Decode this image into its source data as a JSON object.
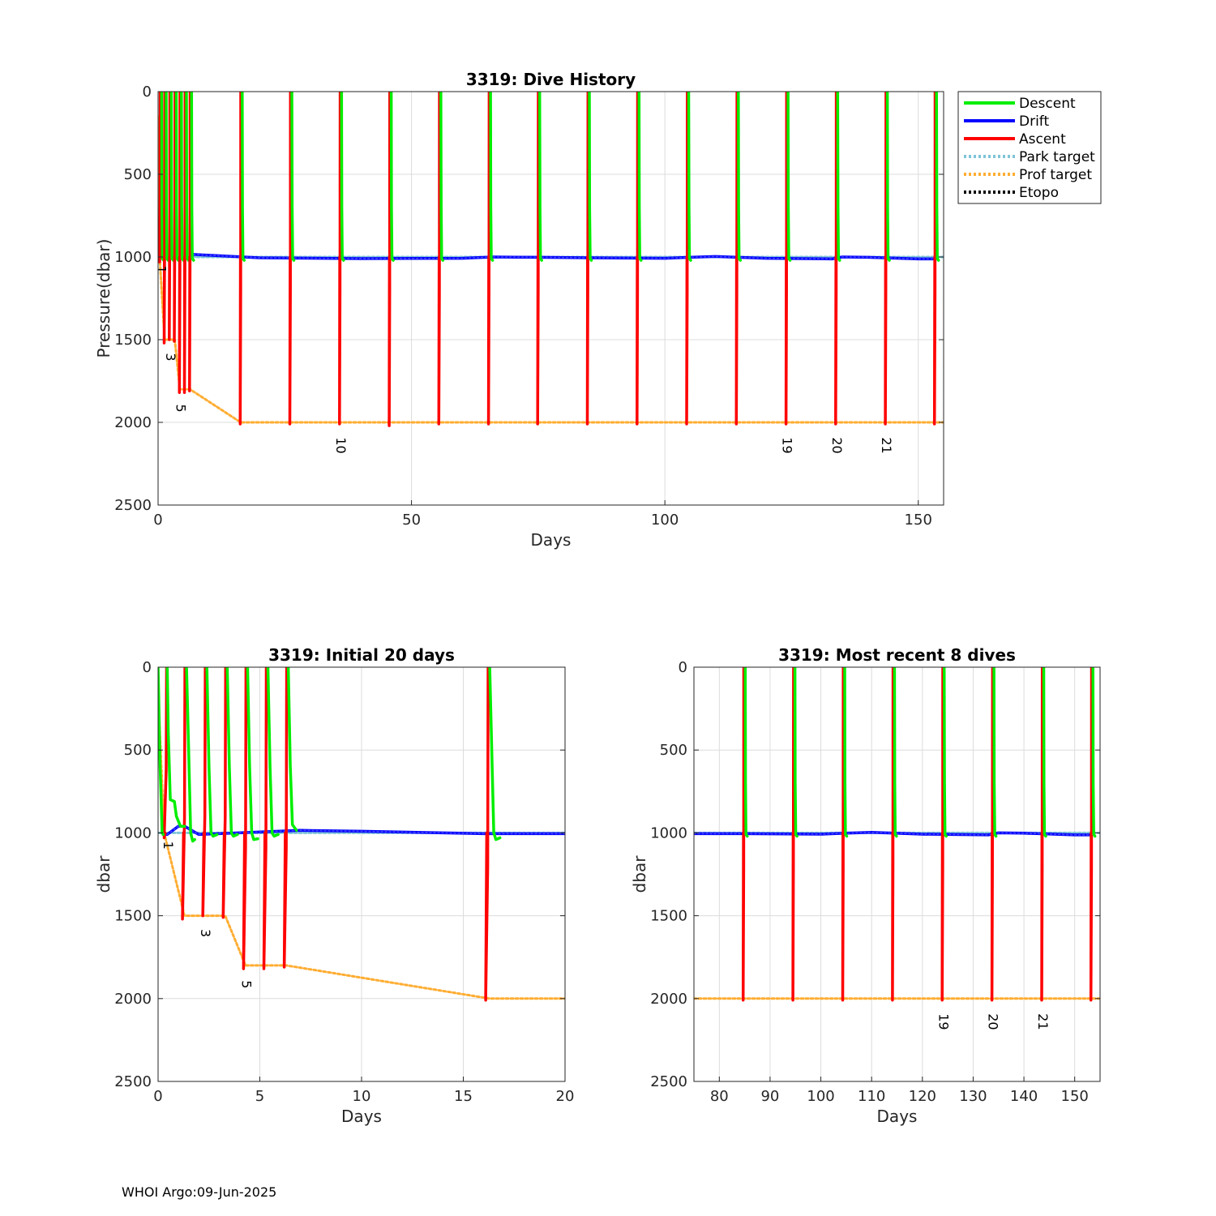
{
  "footer": "WHOI Argo:09-Jun-2025",
  "colors": {
    "descent": "#00ee00",
    "drift": "#0000ff",
    "ascent": "#ff0000",
    "park_target": "#7fc4d8",
    "prof_target": "#ffad33",
    "etopo": "#000000",
    "grid": "#dcdcdc"
  },
  "chart_data": [
    {
      "id": "top",
      "type": "line",
      "title": "3319: Dive History",
      "xlabel": "Days",
      "ylabel": "Pressure(dbar)",
      "xlim": [
        0,
        155
      ],
      "ylim": [
        0,
        2500
      ],
      "y_reversed": true,
      "xticks": [
        0,
        50,
        100,
        150
      ],
      "yticks": [
        0,
        500,
        1000,
        1500,
        2000,
        2500
      ],
      "grid": true,
      "legend": {
        "placement": "outside-top-right",
        "entries": [
          {
            "label": "Descent",
            "series": "descent",
            "style": "solid"
          },
          {
            "label": "Drift",
            "series": "drift",
            "style": "solid"
          },
          {
            "label": "Ascent",
            "series": "ascent",
            "style": "solid"
          },
          {
            "label": "Park target",
            "series": "park_target",
            "style": "dotted"
          },
          {
            "label": "Prof target",
            "series": "prof_target",
            "style": "dotted"
          },
          {
            "label": "Etopo",
            "series": "etopo",
            "style": "dotted"
          }
        ]
      },
      "cycles": [
        {
          "start": 0.4,
          "depth": 1030,
          "surface": 0.7
        },
        {
          "start": 1.3,
          "depth": 1520,
          "surface": 1.6
        },
        {
          "start": 2.3,
          "depth": 1500,
          "surface": 2.6
        },
        {
          "start": 3.3,
          "depth": 1510,
          "surface": 3.6
        },
        {
          "start": 4.3,
          "depth": 1820,
          "surface": 4.6
        },
        {
          "start": 5.3,
          "depth": 1820,
          "surface": 5.6
        },
        {
          "start": 6.3,
          "depth": 1810,
          "surface": 6.6
        },
        {
          "start": 16.3,
          "depth": 2010,
          "surface": 16.6
        },
        {
          "start": 26.1,
          "depth": 2010,
          "surface": 26.4
        },
        {
          "start": 35.9,
          "depth": 2010,
          "surface": 36.2
        },
        {
          "start": 45.7,
          "depth": 2020,
          "surface": 46.0
        },
        {
          "start": 55.5,
          "depth": 2010,
          "surface": 55.8
        },
        {
          "start": 65.3,
          "depth": 2010,
          "surface": 65.6
        },
        {
          "start": 75.0,
          "depth": 2010,
          "surface": 75.3
        },
        {
          "start": 84.8,
          "depth": 2010,
          "surface": 85.1
        },
        {
          "start": 94.6,
          "depth": 2010,
          "surface": 94.9
        },
        {
          "start": 104.4,
          "depth": 2010,
          "surface": 104.7
        },
        {
          "start": 114.2,
          "depth": 2010,
          "surface": 114.5
        },
        {
          "start": 124.0,
          "depth": 2010,
          "surface": 124.3
        },
        {
          "start": 133.8,
          "depth": 2010,
          "surface": 134.1
        },
        {
          "start": 143.6,
          "depth": 2010,
          "surface": 143.9
        },
        {
          "start": 153.3,
          "depth": 2010,
          "surface": 153.6
        }
      ],
      "drift_profile": [
        [
          7,
          985
        ],
        [
          20,
          1005
        ],
        [
          40,
          1010
        ],
        [
          60,
          1008
        ],
        [
          66,
          1000
        ],
        [
          75,
          1002
        ],
        [
          85,
          1005
        ],
        [
          100,
          1008
        ],
        [
          105,
          1002
        ],
        [
          110,
          997
        ],
        [
          120,
          1008
        ],
        [
          133,
          1012
        ],
        [
          135,
          1000
        ],
        [
          140,
          1002
        ],
        [
          150,
          1012
        ],
        [
          153,
          1012
        ]
      ],
      "park_target": [
        [
          0,
          1000
        ],
        [
          155,
          1000
        ]
      ],
      "prof_target": [
        [
          0,
          150
        ],
        [
          0.3,
          1000
        ],
        [
          1.3,
          1500
        ],
        [
          3.3,
          1500
        ],
        [
          4.3,
          1800
        ],
        [
          6.3,
          1800
        ],
        [
          16.3,
          2000
        ],
        [
          155,
          2000
        ]
      ],
      "cycle_labels": [
        {
          "text": "1",
          "x": 0.5,
          "y": 1050
        },
        {
          "text": "3",
          "x": 2.3,
          "y": 1580
        },
        {
          "text": "5",
          "x": 4.3,
          "y": 1890
        },
        {
          "text": "10",
          "x": 35.9,
          "y": 2090
        },
        {
          "text": "19",
          "x": 124.0,
          "y": 2090
        },
        {
          "text": "20",
          "x": 133.8,
          "y": 2090
        },
        {
          "text": "21",
          "x": 143.6,
          "y": 2090
        }
      ]
    },
    {
      "id": "bottom-left",
      "type": "line",
      "title": "3319: Initial 20 days",
      "xlabel": "Days",
      "ylabel": "dbar",
      "xlim": [
        0,
        20
      ],
      "ylim": [
        0,
        2500
      ],
      "y_reversed": true,
      "xticks": [
        0,
        5,
        10,
        15,
        20
      ],
      "yticks": [
        0,
        500,
        1000,
        1500,
        2000,
        2500
      ],
      "grid": true,
      "cycles": [
        {
          "start": 0.4,
          "depth": 1030,
          "surface": 0.45
        },
        {
          "start": 1.3,
          "depth": 1520,
          "surface": 1.4
        },
        {
          "start": 2.3,
          "depth": 1500,
          "surface": 2.4
        },
        {
          "start": 3.3,
          "depth": 1510,
          "surface": 3.4
        },
        {
          "start": 4.3,
          "depth": 1820,
          "surface": 4.4
        },
        {
          "start": 5.3,
          "depth": 1820,
          "surface": 5.4
        },
        {
          "start": 6.3,
          "depth": 1810,
          "surface": 6.4
        },
        {
          "start": 16.2,
          "depth": 2010,
          "surface": 16.3
        }
      ],
      "descents": [
        [
          [
            0,
            0
          ],
          [
            0.1,
            600
          ],
          [
            0.2,
            1000
          ],
          [
            0.25,
            1010
          ]
        ],
        [
          [
            0.45,
            0
          ],
          [
            0.5,
            400
          ],
          [
            0.6,
            800
          ],
          [
            0.8,
            810
          ],
          [
            0.9,
            900
          ],
          [
            1.1,
            960
          ],
          [
            1.3,
            960
          ]
        ],
        [
          [
            1.4,
            0
          ],
          [
            1.5,
            500
          ],
          [
            1.6,
            1000
          ],
          [
            1.7,
            1050
          ],
          [
            1.8,
            1040
          ]
        ],
        [
          [
            2.4,
            0
          ],
          [
            2.5,
            600
          ],
          [
            2.6,
            1000
          ],
          [
            2.7,
            1020
          ],
          [
            2.9,
            1010
          ]
        ],
        [
          [
            3.4,
            0
          ],
          [
            3.5,
            600
          ],
          [
            3.6,
            1000
          ],
          [
            3.7,
            1020
          ],
          [
            3.9,
            1010
          ]
        ],
        [
          [
            4.4,
            0
          ],
          [
            4.5,
            600
          ],
          [
            4.6,
            1000
          ],
          [
            4.7,
            1040
          ],
          [
            4.9,
            1035
          ]
        ],
        [
          [
            5.4,
            0
          ],
          [
            5.5,
            600
          ],
          [
            5.6,
            1000
          ],
          [
            5.7,
            1020
          ],
          [
            5.9,
            1010
          ]
        ],
        [
          [
            6.4,
            0
          ],
          [
            6.5,
            600
          ],
          [
            6.6,
            950
          ],
          [
            6.8,
            985
          ]
        ],
        [
          [
            16.3,
            0
          ],
          [
            16.4,
            500
          ],
          [
            16.5,
            1000
          ],
          [
            16.6,
            1040
          ],
          [
            16.8,
            1030
          ]
        ]
      ],
      "drift_profile": [
        [
          0.25,
          1010
        ],
        [
          0.45,
          1010
        ],
        [
          1.0,
          960
        ],
        [
          1.3,
          960
        ],
        [
          2.0,
          1010
        ],
        [
          7,
          985
        ],
        [
          10,
          990
        ],
        [
          16,
          1005
        ],
        [
          20,
          1005
        ]
      ],
      "park_target": [
        [
          0,
          1000
        ],
        [
          20,
          1000
        ]
      ],
      "prof_target": [
        [
          0,
          150
        ],
        [
          0.3,
          1000
        ],
        [
          1.3,
          1500
        ],
        [
          3.3,
          1500
        ],
        [
          4.3,
          1800
        ],
        [
          6.3,
          1800
        ],
        [
          16.3,
          2000
        ],
        [
          20,
          2000
        ]
      ],
      "cycle_labels": [
        {
          "text": "1",
          "x": 0.45,
          "y": 1050
        },
        {
          "text": "3",
          "x": 2.3,
          "y": 1580
        },
        {
          "text": "5",
          "x": 4.3,
          "y": 1890
        }
      ]
    },
    {
      "id": "bottom-right",
      "type": "line",
      "title": "3319: Most recent 8 dives",
      "xlabel": "Days",
      "ylabel": "dbar",
      "xlim": [
        75,
        155
      ],
      "ylim": [
        0,
        2500
      ],
      "y_reversed": true,
      "xticks": [
        80,
        90,
        100,
        110,
        120,
        130,
        140,
        150
      ],
      "yticks": [
        0,
        500,
        1000,
        1500,
        2000,
        2500
      ],
      "grid": true,
      "cycles": [
        {
          "start": 84.8,
          "depth": 2010,
          "surface": 85.1
        },
        {
          "start": 94.6,
          "depth": 2010,
          "surface": 94.9
        },
        {
          "start": 104.4,
          "depth": 2010,
          "surface": 104.7
        },
        {
          "start": 114.2,
          "depth": 2010,
          "surface": 114.5
        },
        {
          "start": 124.0,
          "depth": 2010,
          "surface": 124.3
        },
        {
          "start": 133.8,
          "depth": 2010,
          "surface": 134.1
        },
        {
          "start": 143.6,
          "depth": 2010,
          "surface": 143.9
        },
        {
          "start": 153.3,
          "depth": 2010,
          "surface": 153.6
        }
      ],
      "drift_profile": [
        [
          75,
          1005
        ],
        [
          85,
          1005
        ],
        [
          100,
          1008
        ],
        [
          105,
          1002
        ],
        [
          110,
          997
        ],
        [
          120,
          1008
        ],
        [
          133,
          1012
        ],
        [
          135,
          1000
        ],
        [
          140,
          1002
        ],
        [
          150,
          1012
        ],
        [
          153,
          1012
        ]
      ],
      "park_target": [
        [
          75,
          1000
        ],
        [
          155,
          1000
        ]
      ],
      "prof_target": [
        [
          75,
          2000
        ],
        [
          155,
          2000
        ]
      ],
      "cycle_labels": [
        {
          "text": "19",
          "x": 124.0,
          "y": 2090
        },
        {
          "text": "20",
          "x": 133.8,
          "y": 2090
        },
        {
          "text": "21",
          "x": 143.6,
          "y": 2090
        }
      ]
    }
  ]
}
